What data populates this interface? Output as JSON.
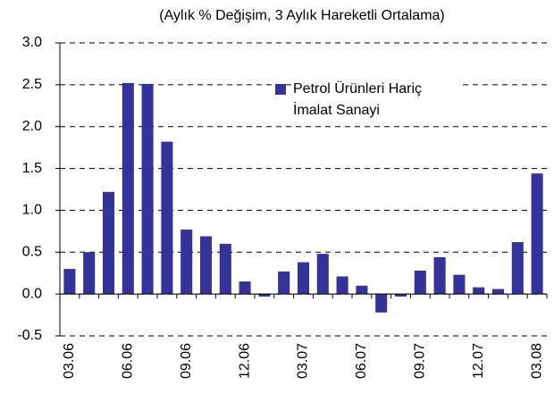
{
  "chart_data": {
    "type": "bar",
    "title": "(Aylık % Değişim, 3 Aylık Hareketli Ortalama)",
    "categories": [
      "03.06",
      null,
      null,
      "06.06",
      null,
      null,
      "09.06",
      null,
      null,
      "12.06",
      null,
      null,
      "03.07",
      null,
      null,
      "06.07",
      null,
      null,
      "09.07",
      null,
      null,
      "12.07",
      null,
      null,
      "03.08"
    ],
    "series": [
      {
        "name": "Petrol Ürünleri Hariç İmalat Sanayi",
        "color": "#333399",
        "values": [
          0.3,
          0.5,
          1.22,
          2.52,
          2.51,
          1.82,
          0.77,
          0.69,
          0.6,
          0.15,
          -0.03,
          0.27,
          0.38,
          0.48,
          0.21,
          0.1,
          -0.22,
          -0.03,
          0.28,
          0.44,
          0.23,
          0.08,
          0.06,
          0.62,
          1.44
        ]
      }
    ],
    "ylim": [
      -0.5,
      3.0
    ],
    "yticks": [
      {
        "value": -0.5,
        "label": "-0.5"
      },
      {
        "value": 0,
        "label": "0.0"
      },
      0.5,
      {
        "value": 1,
        "label": "1.0"
      },
      1.5,
      {
        "value": 2,
        "label": "2.0"
      },
      2.5,
      {
        "value": 3,
        "label": "3.0"
      }
    ],
    "grid": true
  }
}
